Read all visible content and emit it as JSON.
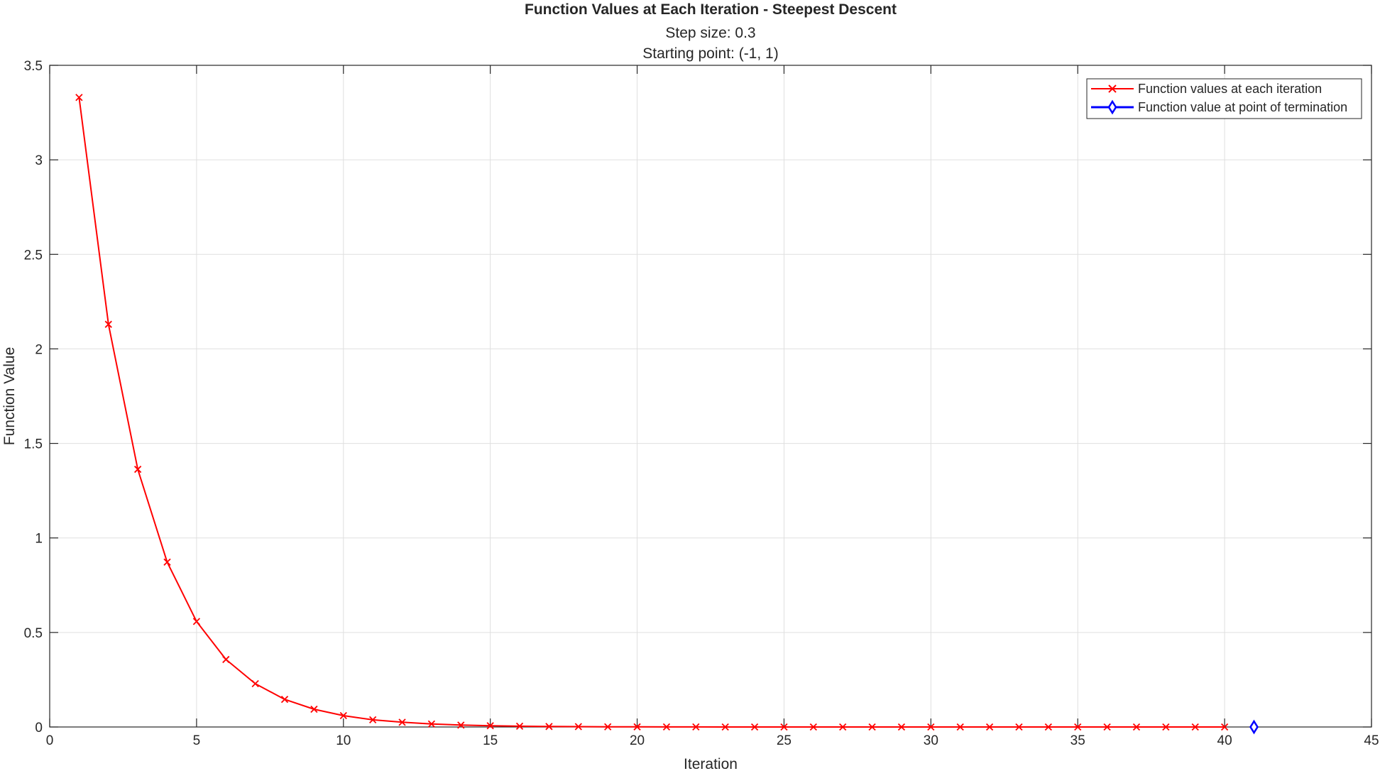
{
  "chart_data": {
    "type": "line",
    "title": "Function Values at Each Iteration - Steepest Descent",
    "subtitle_lines": [
      "Step size: 0.3",
      "Starting point: (-1, 1)"
    ],
    "xlabel": "Iteration",
    "ylabel": "Function Value",
    "xlim": [
      0,
      45
    ],
    "ylim": [
      0,
      3.5
    ],
    "xticks": [
      0,
      5,
      10,
      15,
      20,
      25,
      30,
      35,
      40,
      45
    ],
    "yticks": [
      0,
      0.5,
      1,
      1.5,
      2,
      2.5,
      3,
      3.5
    ],
    "xtick_labels": [
      "0",
      "5",
      "10",
      "15",
      "20",
      "25",
      "30",
      "35",
      "40",
      "45"
    ],
    "ytick_labels": [
      "0",
      "0.5",
      "1",
      "1.5",
      "2",
      "2.5",
      "3",
      "3.5"
    ],
    "grid": true,
    "legend_position": "top-right",
    "series": [
      {
        "name": "Function values at each iteration",
        "color": "#ff0000",
        "marker": "x",
        "x": [
          1,
          2,
          3,
          4,
          5,
          6,
          7,
          8,
          9,
          10,
          11,
          12,
          13,
          14,
          15,
          16,
          17,
          18,
          19,
          20,
          21,
          22,
          23,
          24,
          25,
          26,
          27,
          28,
          29,
          30,
          31,
          32,
          33,
          34,
          35,
          36,
          37,
          38,
          39,
          40
        ],
        "values": [
          3.33,
          2.13,
          1.363,
          0.872,
          0.558,
          0.357,
          0.229,
          0.146,
          0.094,
          0.06,
          0.038,
          0.025,
          0.016,
          0.01,
          0.0064,
          0.0041,
          0.0026,
          0.0017,
          0.0011,
          0.0007,
          0.00045,
          0.00029,
          0.00018,
          0.00012,
          8e-05,
          5e-05,
          3e-05,
          2e-05,
          1e-05,
          1e-05,
          0,
          0,
          0,
          0,
          0,
          0,
          0,
          0,
          0,
          0
        ]
      },
      {
        "name": "Function value at point of termination",
        "color": "#0000ff",
        "marker": "diamond",
        "x": [
          41
        ],
        "values": [
          0
        ]
      }
    ]
  }
}
